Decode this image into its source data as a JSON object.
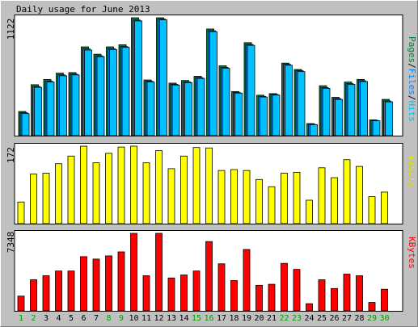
{
  "title": "Daily usage for June 2013",
  "chart_data": [
    {
      "type": "bar",
      "panel": "pages-files-hits",
      "categories": [
        "1",
        "2",
        "3",
        "4",
        "5",
        "6",
        "7",
        "8",
        "9",
        "10",
        "11",
        "12",
        "13",
        "14",
        "15",
        "16",
        "17",
        "18",
        "19",
        "20",
        "21",
        "22",
        "23",
        "24",
        "25",
        "26",
        "27",
        "28",
        "29",
        "30"
      ],
      "weekend_days": [
        "1",
        "2",
        "8",
        "9",
        "15",
        "16",
        "22",
        "23",
        "29",
        "30"
      ],
      "ymax_label": "1122",
      "ylim": [
        0,
        1122
      ],
      "series": [
        {
          "name": "Pages",
          "color": "#008040",
          "values": [
            230,
            485,
            535,
            595,
            600,
            845,
            775,
            845,
            865,
            1122,
            530,
            1122,
            500,
            525,
            565,
            1015,
            665,
            420,
            885,
            385,
            400,
            690,
            630,
            115,
            475,
            365,
            510,
            535,
            150,
            345
          ]
        },
        {
          "name": "Files",
          "color": "#0080ff",
          "values": [
            218,
            468,
            518,
            578,
            585,
            825,
            760,
            828,
            848,
            1100,
            518,
            1110,
            488,
            512,
            552,
            998,
            650,
            410,
            868,
            374,
            392,
            678,
            618,
            108,
            458,
            352,
            495,
            522,
            145,
            330
          ]
        },
        {
          "name": "Hits",
          "color": "#00c0ff",
          "values": [
            210,
            460,
            510,
            570,
            578,
            815,
            752,
            820,
            840,
            1092,
            510,
            1102,
            482,
            505,
            545,
            990,
            642,
            405,
            860,
            368,
            386,
            670,
            610,
            105,
            450,
            345,
            488,
            515,
            142,
            322
          ]
        }
      ],
      "legend": [
        "Pages",
        "/",
        "Files",
        "/",
        "Hits"
      ]
    },
    {
      "type": "bar",
      "panel": "visits",
      "categories": [
        "1",
        "2",
        "3",
        "4",
        "5",
        "6",
        "7",
        "8",
        "9",
        "10",
        "11",
        "12",
        "13",
        "14",
        "15",
        "16",
        "17",
        "18",
        "19",
        "20",
        "21",
        "22",
        "23",
        "24",
        "25",
        "26",
        "27",
        "28",
        "29",
        "30"
      ],
      "ymax_label": "172",
      "ylim": [
        0,
        172
      ],
      "series": [
        {
          "name": "Visits",
          "color": "#ffff00",
          "values": [
            48,
            110,
            112,
            133,
            150,
            172,
            135,
            156,
            170,
            172,
            135,
            162,
            122,
            150,
            169,
            168,
            118,
            120,
            118,
            98,
            82,
            112,
            114,
            52,
            124,
            102,
            142,
            127,
            60,
            70
          ]
        }
      ],
      "legend": [
        "Visits"
      ]
    },
    {
      "type": "bar",
      "panel": "kbytes",
      "categories": [
        "1",
        "2",
        "3",
        "4",
        "5",
        "6",
        "7",
        "8",
        "9",
        "10",
        "11",
        "12",
        "13",
        "14",
        "15",
        "16",
        "17",
        "18",
        "19",
        "20",
        "21",
        "22",
        "23",
        "24",
        "25",
        "26",
        "27",
        "28",
        "29",
        "30"
      ],
      "ymax_label": "7348",
      "ylim": [
        0,
        7348
      ],
      "series": [
        {
          "name": "KBytes",
          "color": "#ff0000",
          "values": [
            1400,
            2950,
            3330,
            3780,
            3780,
            5140,
            4910,
            5210,
            5590,
            7348,
            3330,
            7348,
            3120,
            3400,
            3780,
            6570,
            4460,
            2870,
            5820,
            2420,
            2520,
            4500,
            3930,
            680,
            2950,
            2120,
            3480,
            3330,
            800,
            2050
          ]
        }
      ],
      "legend": [
        "KBytes"
      ]
    }
  ]
}
